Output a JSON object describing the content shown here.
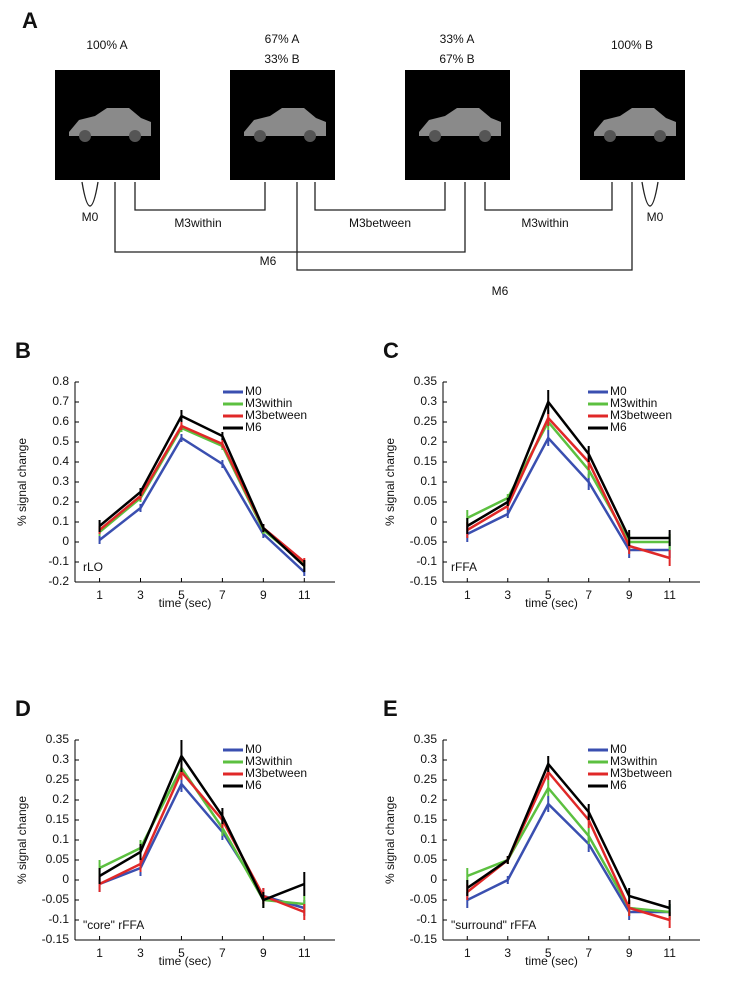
{
  "diagram": {
    "panel": "A",
    "images": [
      {
        "label_lines": [
          "100% A"
        ]
      },
      {
        "label_lines": [
          "67% A",
          "33% B"
        ]
      },
      {
        "label_lines": [
          "33% A",
          "67% B"
        ]
      },
      {
        "label_lines": [
          "100% B"
        ]
      }
    ],
    "connections": [
      {
        "label": "M0"
      },
      {
        "label": "M3within"
      },
      {
        "label": "M3between"
      },
      {
        "label": "M3within"
      },
      {
        "label": "M0"
      },
      {
        "label": "M6"
      },
      {
        "label": "M6"
      }
    ]
  },
  "chart_data": [
    {
      "type": "line",
      "panel": "B",
      "annotation": "rLO",
      "xlabel": "time (sec)",
      "ylabel": "% signal change",
      "x": [
        1,
        3,
        5,
        7,
        9,
        11
      ],
      "xlim": [
        -0.2,
        12.5
      ],
      "xticks": [
        1,
        3,
        5,
        7,
        9,
        11
      ],
      "ylim": [
        -0.2,
        0.8
      ],
      "yticks": [
        -0.2,
        -0.1,
        0,
        0.1,
        0.2,
        0.3,
        0.4,
        0.5,
        0.6,
        0.7,
        0.8
      ],
      "series": [
        {
          "name": "M0",
          "color": "#3a4fb0",
          "values": [
            0.01,
            0.17,
            0.52,
            0.39,
            0.04,
            -0.15
          ],
          "errors": [
            0.02,
            0.02,
            0.02,
            0.02,
            0.02,
            0.02
          ]
        },
        {
          "name": "M3within",
          "color": "#5cc040",
          "values": [
            0.05,
            0.22,
            0.57,
            0.48,
            0.06,
            -0.11
          ],
          "errors": [
            0.02,
            0.02,
            0.02,
            0.02,
            0.02,
            0.02
          ]
        },
        {
          "name": "M3between",
          "color": "#e02828",
          "values": [
            0.06,
            0.23,
            0.58,
            0.49,
            0.07,
            -0.1
          ],
          "errors": [
            0.02,
            0.02,
            0.02,
            0.02,
            0.02,
            0.02
          ]
        },
        {
          "name": "M6",
          "color": "#000000",
          "values": [
            0.08,
            0.25,
            0.63,
            0.53,
            0.07,
            -0.12
          ],
          "errors": [
            0.03,
            0.02,
            0.03,
            0.02,
            0.02,
            0.03
          ]
        }
      ]
    },
    {
      "type": "line",
      "panel": "C",
      "annotation": "rFFA",
      "xlabel": "time (sec)",
      "ylabel": "% signal change",
      "x": [
        1,
        3,
        5,
        7,
        9,
        11
      ],
      "xlim": [
        -0.2,
        12.5
      ],
      "xticks": [
        1,
        3,
        5,
        7,
        9,
        11
      ],
      "ylim": [
        -0.15,
        0.35
      ],
      "yticks": [
        -0.15,
        -0.1,
        -0.05,
        0,
        0.05,
        0.1,
        0.15,
        0.2,
        0.25,
        0.3,
        0.35
      ],
      "series": [
        {
          "name": "M0",
          "color": "#3a4fb0",
          "values": [
            -0.03,
            0.02,
            0.21,
            0.1,
            -0.07,
            -0.07
          ],
          "errors": [
            0.02,
            0.01,
            0.02,
            0.02,
            0.02,
            0.02
          ]
        },
        {
          "name": "M3within",
          "color": "#5cc040",
          "values": [
            0.01,
            0.06,
            0.25,
            0.13,
            -0.05,
            -0.05
          ],
          "errors": [
            0.02,
            0.01,
            0.02,
            0.02,
            0.02,
            0.02
          ]
        },
        {
          "name": "M3between",
          "color": "#e02828",
          "values": [
            -0.02,
            0.04,
            0.26,
            0.15,
            -0.06,
            -0.09
          ],
          "errors": [
            0.02,
            0.01,
            0.02,
            0.02,
            0.02,
            0.02
          ]
        },
        {
          "name": "M6",
          "color": "#000000",
          "values": [
            -0.01,
            0.05,
            0.3,
            0.17,
            -0.04,
            -0.04
          ],
          "errors": [
            0.02,
            0.01,
            0.03,
            0.02,
            0.02,
            0.02
          ]
        }
      ]
    },
    {
      "type": "line",
      "panel": "D",
      "annotation": "\"core\" rFFA",
      "xlabel": "time (sec)",
      "ylabel": "% signal change",
      "x": [
        1,
        3,
        5,
        7,
        9,
        11
      ],
      "xlim": [
        -0.2,
        12.5
      ],
      "xticks": [
        1,
        3,
        5,
        7,
        9,
        11
      ],
      "ylim": [
        -0.15,
        0.35
      ],
      "yticks": [
        -0.15,
        -0.1,
        -0.05,
        0,
        0.05,
        0.1,
        0.15,
        0.2,
        0.25,
        0.3,
        0.35
      ],
      "series": [
        {
          "name": "M0",
          "color": "#3a4fb0",
          "values": [
            -0.01,
            0.03,
            0.24,
            0.12,
            -0.04,
            -0.07
          ],
          "errors": [
            0.02,
            0.02,
            0.02,
            0.02,
            0.02,
            0.02
          ]
        },
        {
          "name": "M3within",
          "color": "#5cc040",
          "values": [
            0.03,
            0.08,
            0.28,
            0.13,
            -0.05,
            -0.06
          ],
          "errors": [
            0.02,
            0.02,
            0.02,
            0.02,
            0.02,
            0.02
          ]
        },
        {
          "name": "M3between",
          "color": "#e02828",
          "values": [
            -0.01,
            0.04,
            0.27,
            0.15,
            -0.04,
            -0.08
          ],
          "errors": [
            0.02,
            0.02,
            0.02,
            0.02,
            0.02,
            0.02
          ]
        },
        {
          "name": "M6",
          "color": "#000000",
          "values": [
            0.01,
            0.07,
            0.31,
            0.16,
            -0.05,
            -0.01
          ],
          "errors": [
            0.02,
            0.02,
            0.04,
            0.02,
            0.02,
            0.03
          ]
        }
      ]
    },
    {
      "type": "line",
      "panel": "E",
      "annotation": "\"surround\" rFFA",
      "xlabel": "time (sec)",
      "ylabel": "% signal change",
      "x": [
        1,
        3,
        5,
        7,
        9,
        11
      ],
      "xlim": [
        -0.2,
        12.5
      ],
      "xticks": [
        1,
        3,
        5,
        7,
        9,
        11
      ],
      "ylim": [
        -0.15,
        0.35
      ],
      "yticks": [
        -0.15,
        -0.1,
        -0.05,
        0,
        0.05,
        0.1,
        0.15,
        0.2,
        0.25,
        0.3,
        0.35
      ],
      "series": [
        {
          "name": "M0",
          "color": "#3a4fb0",
          "values": [
            -0.05,
            0,
            0.19,
            0.09,
            -0.08,
            -0.08
          ],
          "errors": [
            0.02,
            0.01,
            0.02,
            0.02,
            0.02,
            0.02
          ]
        },
        {
          "name": "M3within",
          "color": "#5cc040",
          "values": [
            0.01,
            0.05,
            0.23,
            0.11,
            -0.07,
            -0.08
          ],
          "errors": [
            0.02,
            0.01,
            0.02,
            0.02,
            0.02,
            0.02
          ]
        },
        {
          "name": "M3between",
          "color": "#e02828",
          "values": [
            -0.03,
            0.05,
            0.27,
            0.15,
            -0.07,
            -0.1
          ],
          "errors": [
            0.02,
            0.01,
            0.02,
            0.02,
            0.02,
            0.02
          ]
        },
        {
          "name": "M6",
          "color": "#000000",
          "values": [
            -0.02,
            0.05,
            0.29,
            0.17,
            -0.04,
            -0.07
          ],
          "errors": [
            0.02,
            0.01,
            0.02,
            0.02,
            0.02,
            0.02
          ]
        }
      ]
    }
  ]
}
